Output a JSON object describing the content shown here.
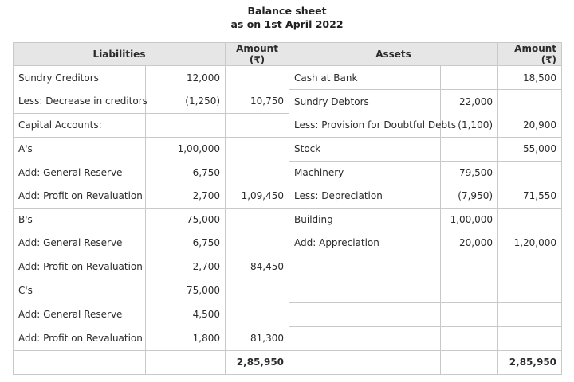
{
  "title": "Balance sheet",
  "subtitle": "as on 1st April 2022",
  "headers": {
    "liabilities": "Liabilities",
    "amount_left": "Amount (₹)",
    "assets": "Assets",
    "amount_right": "Amount (₹)"
  },
  "liabilities": [
    {
      "label": "Sundry Creditors",
      "sub": "12,000",
      "amount": ""
    },
    {
      "label": "Less: Decrease in creditors",
      "sub": "(1,250)",
      "amount": "10,750"
    },
    {
      "label": "Capital Accounts:",
      "sub": "",
      "amount": ""
    },
    {
      "label": "A's",
      "sub": "1,00,000",
      "amount": ""
    },
    {
      "label": "Add: General Reserve",
      "sub": "6,750",
      "amount": ""
    },
    {
      "label": "Add:  Profit on Revaluation",
      "sub": "2,700",
      "amount": "1,09,450"
    },
    {
      "label": "B's",
      "sub": "75,000",
      "amount": ""
    },
    {
      "label": "Add: General Reserve",
      "sub": "6,750",
      "amount": ""
    },
    {
      "label": "Add: Profit on Revaluation",
      "sub": "2,700",
      "amount": "84,450"
    },
    {
      "label": "C's",
      "sub": "75,000",
      "amount": ""
    },
    {
      "label": "Add: General Reserve",
      "sub": "4,500",
      "amount": ""
    },
    {
      "label": "Add: Profit on Revaluation",
      "sub": "1,800",
      "amount": "81,300"
    }
  ],
  "assets": [
    {
      "label": "Cash at Bank",
      "sub": "",
      "amount": "18,500"
    },
    {
      "label": "Sundry Debtors",
      "sub": "22,000",
      "amount": ""
    },
    {
      "label": "Less: Provision for Doubtful Debts",
      "sub": "(1,100)",
      "amount": "20,900"
    },
    {
      "label": "Stock",
      "sub": "",
      "amount": "55,000"
    },
    {
      "label": "Machinery",
      "sub": "79,500",
      "amount": ""
    },
    {
      "label": "Less: Depreciation",
      "sub": "(7,950)",
      "amount": "71,550"
    },
    {
      "label": "Building",
      "sub": "1,00,000",
      "amount": ""
    },
    {
      "label": "Add: Appreciation",
      "sub": "20,000",
      "amount": "1,20,000"
    },
    {
      "label": "",
      "sub": "",
      "amount": ""
    },
    {
      "label": "",
      "sub": "",
      "amount": ""
    },
    {
      "label": "",
      "sub": "",
      "amount": ""
    },
    {
      "label": "",
      "sub": "",
      "amount": ""
    }
  ],
  "totals": {
    "liabilities": "2,85,950",
    "assets": "2,85,950"
  }
}
